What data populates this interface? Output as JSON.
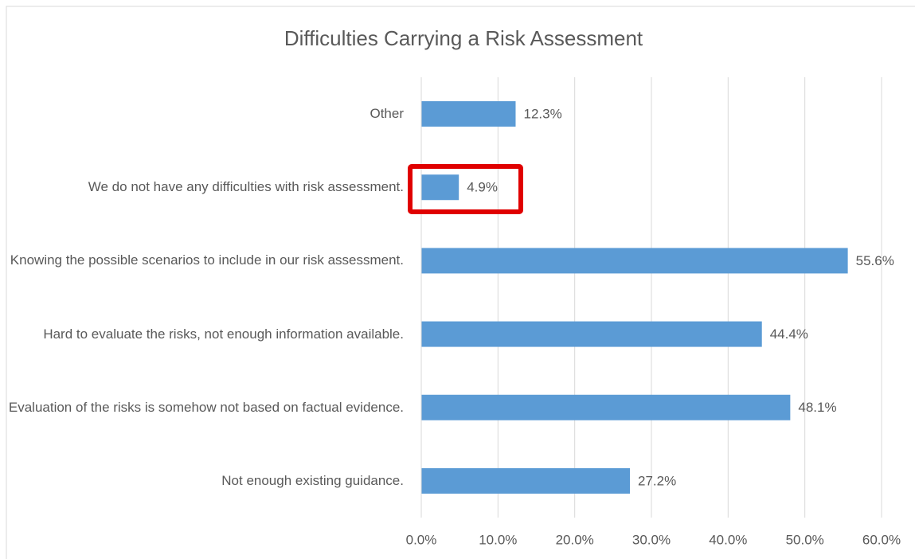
{
  "chart_data": {
    "type": "hbar",
    "title": "Difficulties Carrying a Risk Assessment",
    "categories": [
      "Other",
      "We do not have any difficulties with risk assessment.",
      "Knowing the possible scenarios to include in our risk assessment.",
      "Hard to evaluate the risks, not enough information available.",
      "Evaluation of the risks is somehow not based on factual evidence.",
      "Not enough existing guidance."
    ],
    "values": [
      12.3,
      4.9,
      55.6,
      44.4,
      48.1,
      27.2
    ],
    "value_labels": [
      "12.3%",
      "4.9%",
      "55.6%",
      "44.4%",
      "48.1%",
      "27.2%"
    ],
    "color": "#5b9bd5",
    "xlim": [
      0,
      60
    ],
    "xticks": [
      {
        "value": 0,
        "label": "0.0%"
      },
      {
        "value": 10,
        "label": "10.0%"
      },
      {
        "value": 20,
        "label": "20.0%"
      },
      {
        "value": 30,
        "label": "30.0%"
      },
      {
        "value": 40,
        "label": "40.0%"
      },
      {
        "value": 50,
        "label": "50.0%"
      },
      {
        "value": 60,
        "label": "60.0%"
      }
    ],
    "grid": true
  }
}
